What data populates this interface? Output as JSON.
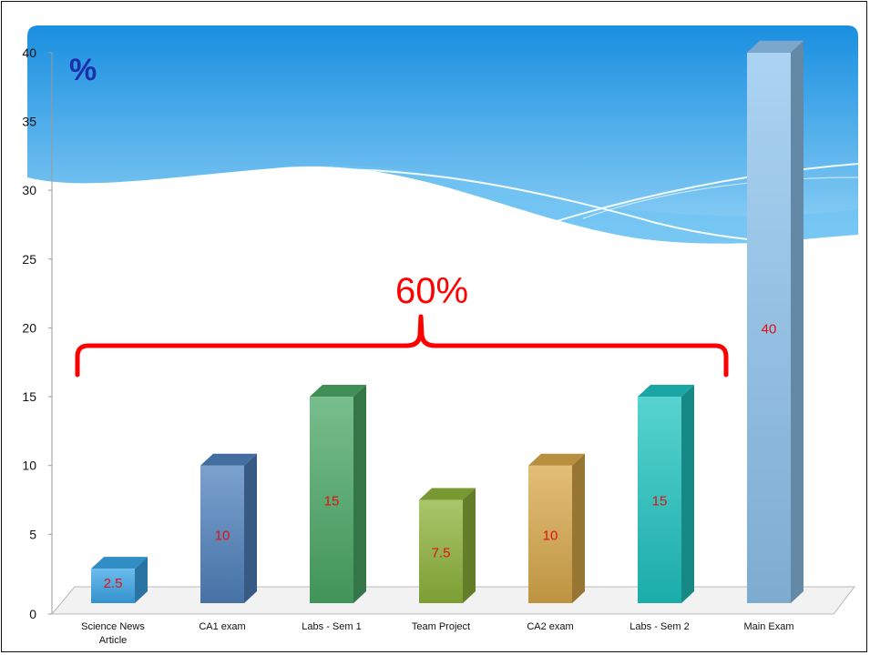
{
  "slide": {
    "percent_mark": "%",
    "bracket_label": "60%"
  },
  "colors": {
    "sky_top": "#1a8fe0",
    "sky_bottom": "#8fd1f6",
    "value_label": "#e01010",
    "bracket": "#ff0000",
    "percent_mark": "#1c2fa8"
  },
  "chart_data": {
    "type": "bar",
    "style": "3d",
    "categories": [
      "Science News Article",
      "CA1 exam",
      "Labs - Sem 1",
      "Team Project",
      "CA2 exam",
      "Labs - Sem 2",
      "Main Exam"
    ],
    "values": [
      2.5,
      10,
      15,
      7.5,
      10,
      15,
      40
    ],
    "data_labels": [
      "2.5",
      "10",
      "15",
      "7.5",
      "10",
      "15",
      "40"
    ],
    "bar_colors": [
      "#3aa6e8",
      "#4f81bd",
      "#4aa865",
      "#8db33a",
      "#d8a84a",
      "#1fc4c0",
      "#8fc4ee"
    ],
    "ylim": [
      0,
      40
    ],
    "yticks": [
      "0",
      "5",
      "10",
      "15",
      "20",
      "25",
      "30",
      "35",
      "40"
    ],
    "grid": false,
    "legend": "none"
  }
}
